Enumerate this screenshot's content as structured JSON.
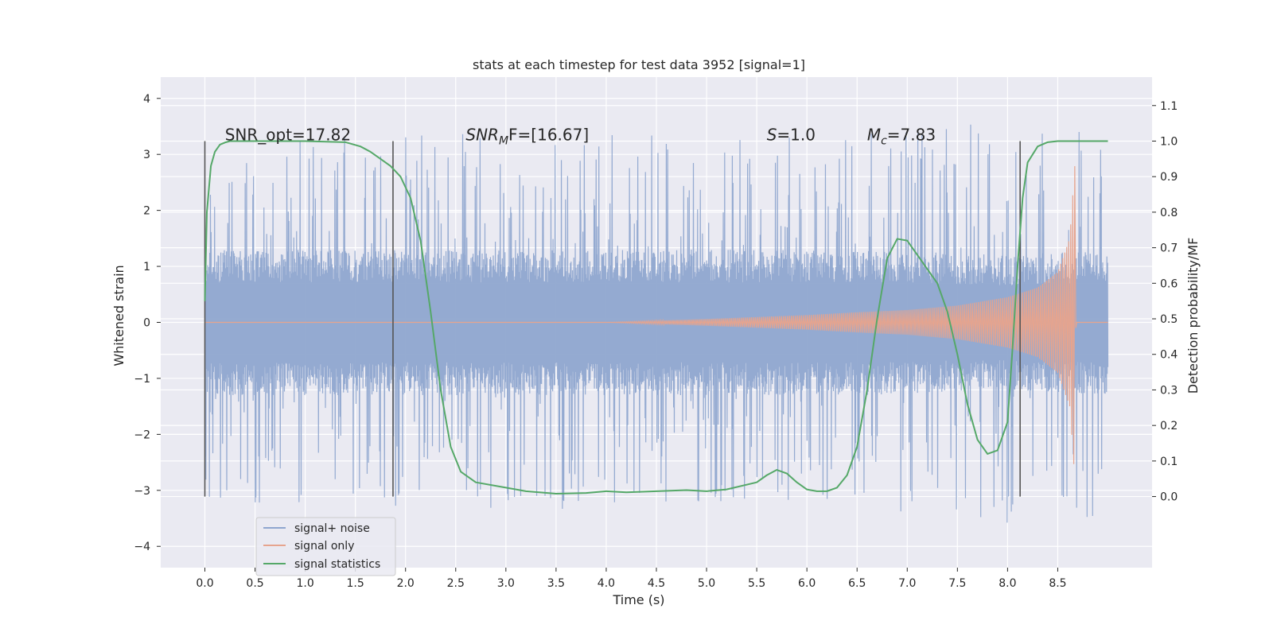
{
  "chart_data": {
    "type": "line",
    "title": "stats at each timestep for test data 3952 [signal=1]",
    "xlabel": "Time (s)",
    "ylabel_left": "Whitened strain",
    "ylabel_right": "Detection probability/MF",
    "xlim": [
      -0.44,
      9.44
    ],
    "ylim_left": [
      -4.38,
      4.38
    ],
    "ylim_right": [
      -0.2,
      1.18
    ],
    "x_ticks": [
      "0.0",
      "0.5",
      "1.0",
      "1.5",
      "2.0",
      "2.5",
      "3.0",
      "3.5",
      "4.0",
      "4.5",
      "5.0",
      "5.5",
      "6.0",
      "6.5",
      "7.0",
      "7.5",
      "8.0",
      "8.5"
    ],
    "y_left_ticks": [
      "4",
      "3",
      "2",
      "1",
      "0",
      "−1",
      "−2",
      "−3",
      "−4"
    ],
    "y_right_ticks": [
      "1.1",
      "1.0",
      "0.9",
      "0.8",
      "0.7",
      "0.6",
      "0.5",
      "0.4",
      "0.3",
      "0.2",
      "0.1",
      "0.0"
    ],
    "grid": true,
    "legend_position": "lower-left",
    "annotations": [
      {
        "text": "SNR_opt=17.82",
        "x": 0.2,
        "y_right": 1.0
      },
      {
        "text": "SNR",
        "sub": "M",
        "rest": "F=[16.67]",
        "italic": true,
        "x": 2.6,
        "y_right": 1.0
      },
      {
        "text": "S",
        "rest": "=1.0",
        "italic": true,
        "x": 5.6,
        "y_right": 1.0
      },
      {
        "text": "M",
        "sub": "c",
        "rest": "=7.83",
        "italic": true,
        "x": 6.6,
        "y_right": 1.0
      }
    ],
    "vlines": [
      {
        "x": 0.0,
        "ymin_right": 0.0,
        "ymax_right": 1.0
      },
      {
        "x": 1.875,
        "ymin_right": 0.0,
        "ymax_right": 1.0
      },
      {
        "x": 8.125,
        "ymin_right": 0.0,
        "ymax_right": 1.0
      }
    ],
    "series": [
      {
        "name": "signal+ noise",
        "color": "#8fa6cf",
        "axis": "left",
        "x_range": [
          0.0,
          9.0
        ],
        "envelope_abs": [
          [
            0.0,
            3.2
          ],
          [
            2.0,
            3.4
          ],
          [
            6.0,
            3.3
          ],
          [
            8.0,
            3.6
          ],
          [
            9.0,
            3.9
          ]
        ],
        "core_abs": [
          [
            0.0,
            1.3
          ],
          [
            6.5,
            1.3
          ],
          [
            8.0,
            1.2
          ],
          [
            9.0,
            1.3
          ]
        ]
      },
      {
        "name": "signal only",
        "color": "#e6a48e",
        "axis": "left",
        "amplitude_env": [
          [
            4.0,
            0.0
          ],
          [
            5.0,
            0.06
          ],
          [
            6.0,
            0.13
          ],
          [
            6.5,
            0.18
          ],
          [
            7.0,
            0.22
          ],
          [
            7.5,
            0.3
          ],
          [
            8.0,
            0.45
          ],
          [
            8.3,
            0.62
          ],
          [
            8.5,
            0.9
          ],
          [
            8.62,
            1.5
          ],
          [
            8.67,
            2.8
          ],
          [
            8.68,
            0.0
          ],
          [
            9.0,
            0.0
          ]
        ]
      },
      {
        "name": "signal statistics",
        "color": "#55a868",
        "axis": "right",
        "x": [
          0.0,
          0.02,
          0.06,
          0.1,
          0.15,
          0.2,
          0.25,
          0.3,
          0.5,
          1.0,
          1.4,
          1.55,
          1.65,
          1.75,
          1.85,
          1.95,
          2.05,
          2.15,
          2.25,
          2.35,
          2.45,
          2.55,
          2.7,
          3.0,
          3.2,
          3.5,
          3.8,
          4.0,
          4.2,
          4.5,
          4.8,
          5.0,
          5.2,
          5.5,
          5.6,
          5.7,
          5.8,
          5.9,
          6.0,
          6.1,
          6.2,
          6.3,
          6.4,
          6.5,
          6.6,
          6.7,
          6.8,
          6.9,
          7.0,
          7.1,
          7.2,
          7.3,
          7.4,
          7.5,
          7.6,
          7.7,
          7.8,
          7.9,
          8.0,
          8.05,
          8.1,
          8.15,
          8.2,
          8.3,
          8.4,
          8.5,
          8.6,
          8.8,
          9.0
        ],
        "y": [
          0.55,
          0.8,
          0.93,
          0.97,
          0.99,
          0.996,
          1.0,
          1.0,
          1.0,
          1.0,
          0.997,
          0.985,
          0.97,
          0.95,
          0.93,
          0.9,
          0.84,
          0.72,
          0.52,
          0.3,
          0.14,
          0.07,
          0.04,
          0.025,
          0.015,
          0.008,
          0.01,
          0.015,
          0.012,
          0.015,
          0.018,
          0.015,
          0.02,
          0.04,
          0.06,
          0.075,
          0.065,
          0.04,
          0.02,
          0.015,
          0.015,
          0.025,
          0.06,
          0.14,
          0.3,
          0.5,
          0.67,
          0.725,
          0.72,
          0.68,
          0.64,
          0.6,
          0.52,
          0.4,
          0.26,
          0.16,
          0.12,
          0.13,
          0.21,
          0.42,
          0.65,
          0.84,
          0.94,
          0.985,
          0.997,
          1.0,
          1.0,
          1.0,
          1.0
        ]
      }
    ]
  }
}
